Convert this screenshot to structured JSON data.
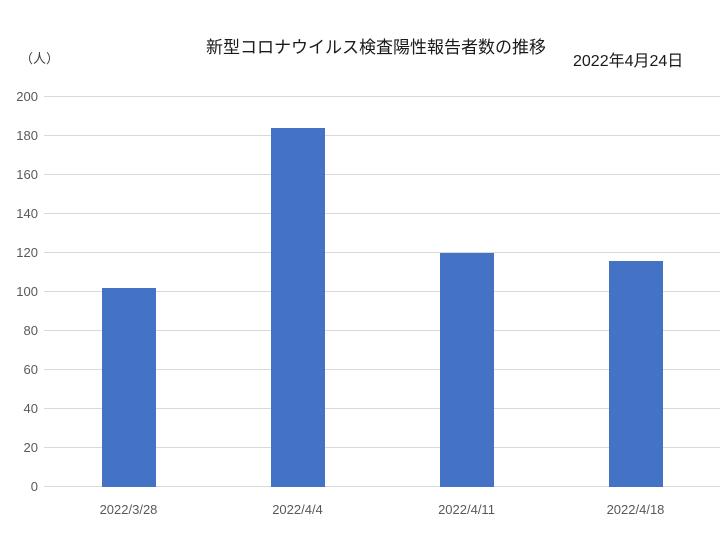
{
  "page": {
    "background": "#ffffff"
  },
  "header": {
    "date_label": "2022年4月24日"
  },
  "chart_data": {
    "type": "bar",
    "title": "新型コロナウイルス検査陽性報告者数の推移",
    "unit_label": "（人）",
    "categories": [
      "2022/3/28",
      "2022/4/4",
      "2022/4/11",
      "2022/4/18"
    ],
    "values": [
      102,
      184,
      120,
      116
    ],
    "xlabel": "",
    "ylabel": "（人）",
    "ylim": [
      0,
      200
    ],
    "yticks": [
      0,
      20,
      40,
      60,
      80,
      100,
      120,
      140,
      160,
      180,
      200
    ],
    "grid": true,
    "legend_position": "none",
    "bar_color": "#4472c4",
    "gridline_color": "#d9d9d9",
    "axis_label_color": "#595959"
  }
}
